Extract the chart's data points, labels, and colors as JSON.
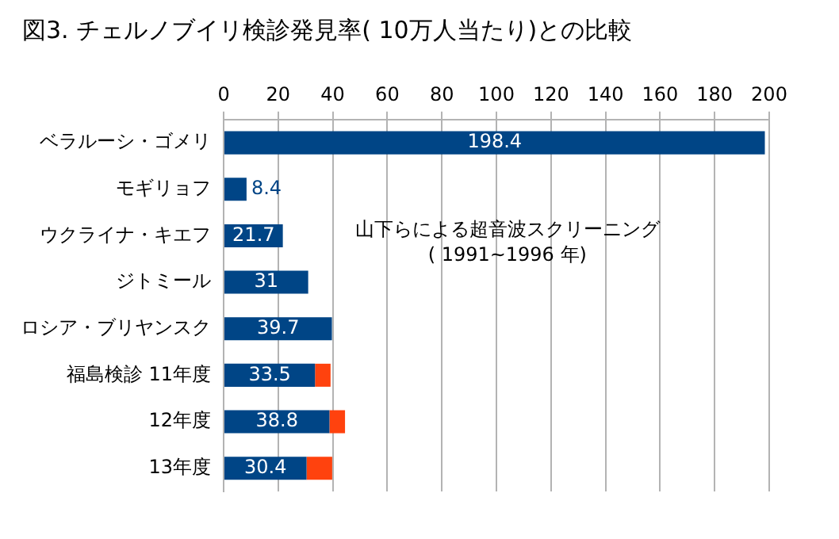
{
  "chart_data": {
    "type": "bar",
    "orientation": "horizontal",
    "stacked": true,
    "title": "図3. チェルノブイリ検診発見率( 10万人当たり)との比較",
    "categories": [
      "ベラルーシ・ゴメリ",
      "モギリョフ",
      "ウクライナ・キエフ",
      "ジトミール",
      "ロシア・ブリヤンスク",
      "福島検診 11年度",
      "12年度",
      "13年度"
    ],
    "series": [
      {
        "color": "#004586",
        "values": [
          198.4,
          8.4,
          21.7,
          31,
          39.7,
          33.5,
          38.8,
          30.4
        ],
        "value_labels": [
          "198.4",
          "8.4",
          "21.7",
          "31",
          "39.7",
          "33.5",
          "38.8",
          "30.4"
        ]
      },
      {
        "color": "#ff420e",
        "values": [
          null,
          null,
          null,
          null,
          null,
          5.7,
          5.7,
          9.4
        ]
      }
    ],
    "xlim": [
      0,
      200
    ],
    "xticks": [
      0,
      20,
      40,
      60,
      80,
      100,
      120,
      140,
      160,
      180,
      200
    ],
    "grid": "x",
    "legend": false,
    "annotations": [
      "山下らによる超音波スクリーニング",
      "( 1991~1996 年)"
    ]
  }
}
